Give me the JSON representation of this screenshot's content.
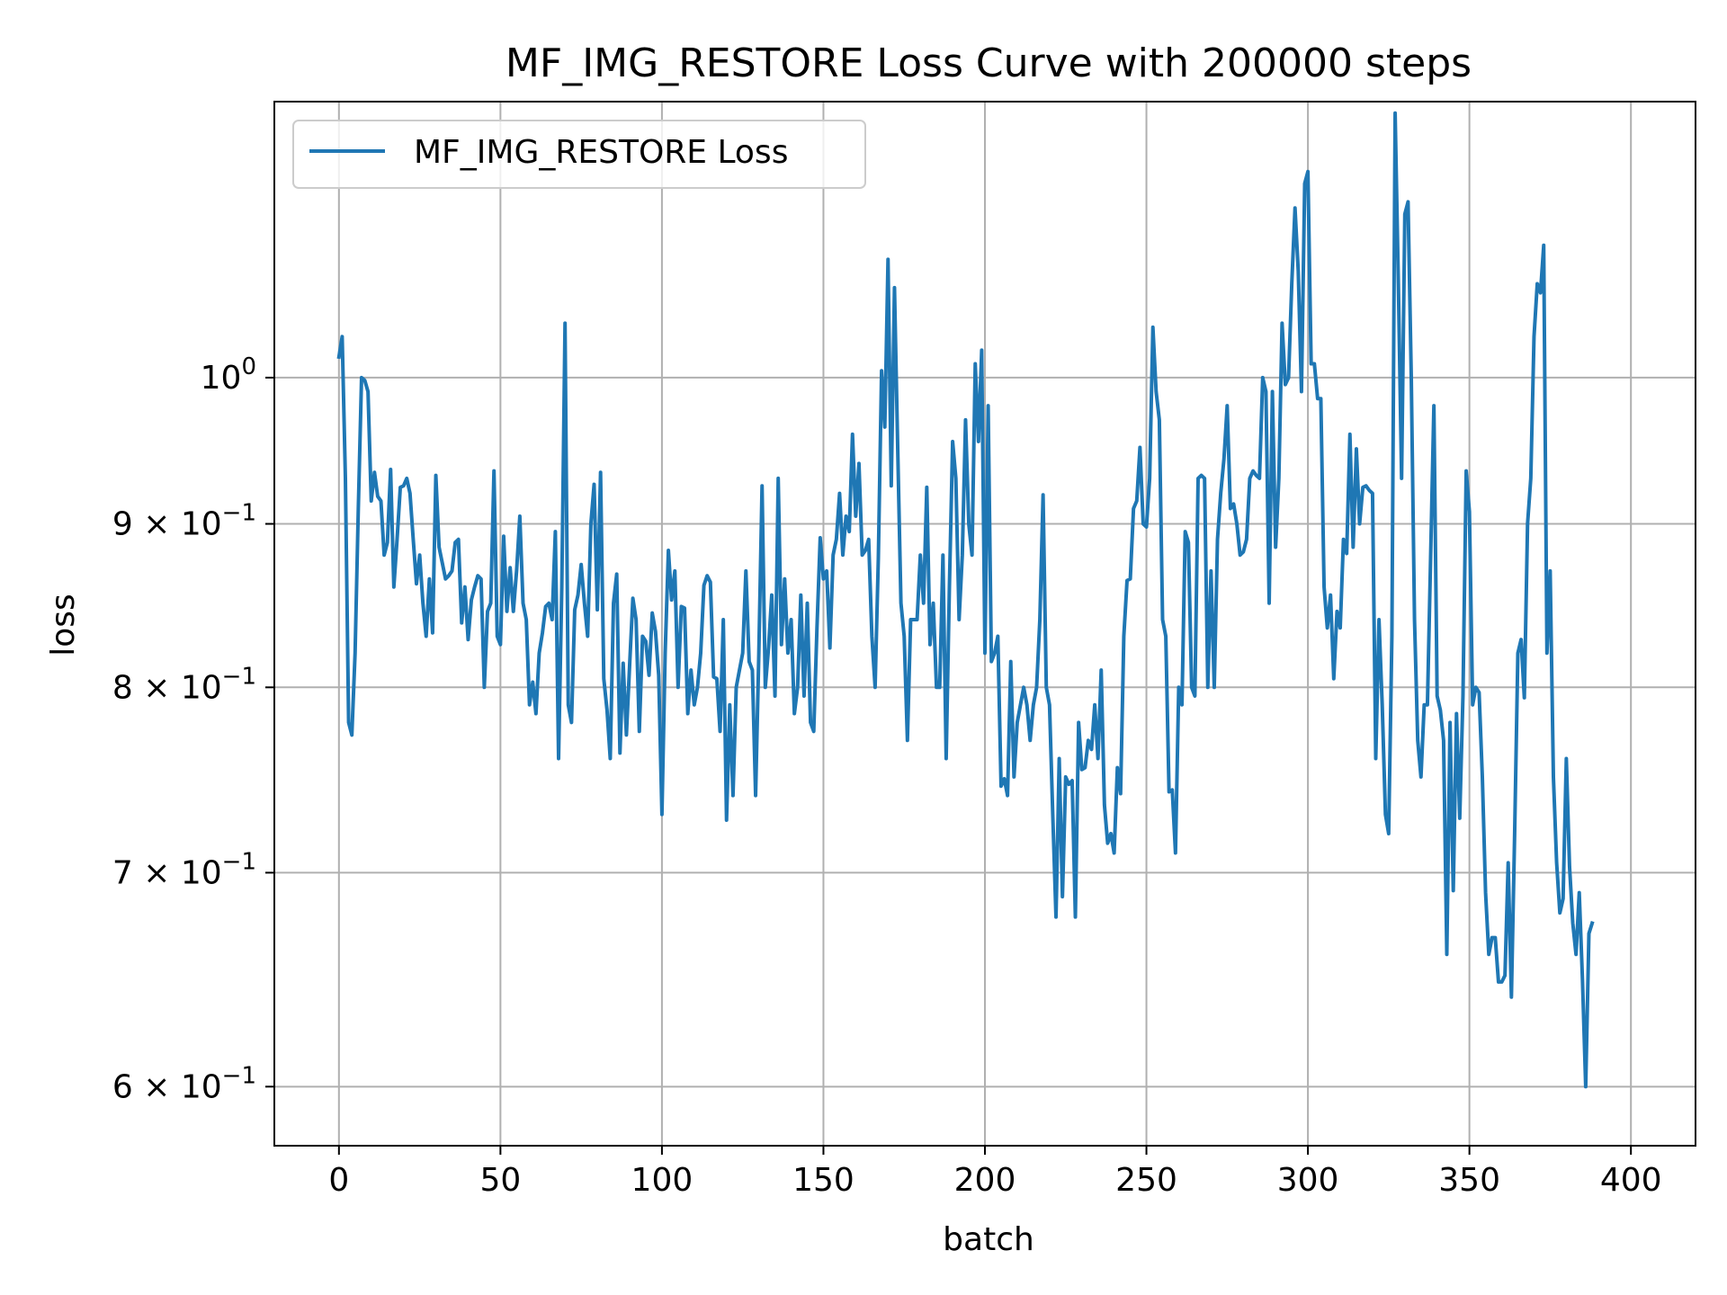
{
  "chart_data": {
    "type": "line",
    "title": "MF_IMG_RESTORE Loss Curve with 200000 steps",
    "xlabel": "batch",
    "ylabel": "loss",
    "yscale": "log",
    "grid": true,
    "legend_position": "top-left",
    "xlim": [
      -20,
      420
    ],
    "ylim": [
      0.575,
      1.22
    ],
    "x_ticks": [
      {
        "value": 0,
        "label": "0"
      },
      {
        "value": 50,
        "label": "50"
      },
      {
        "value": 100,
        "label": "100"
      },
      {
        "value": 150,
        "label": "150"
      },
      {
        "value": 200,
        "label": "200"
      },
      {
        "value": 250,
        "label": "250"
      },
      {
        "value": 300,
        "label": "300"
      },
      {
        "value": 350,
        "label": "350"
      },
      {
        "value": 400,
        "label": "400"
      }
    ],
    "y_ticks": [
      {
        "value": 0.6,
        "mantissa": "6",
        "base": "10",
        "exponent": "−1"
      },
      {
        "value": 0.7,
        "mantissa": "7",
        "base": "10",
        "exponent": "−1"
      },
      {
        "value": 0.8,
        "mantissa": "8",
        "base": "10",
        "exponent": "−1"
      },
      {
        "value": 0.9,
        "mantissa": "9",
        "base": "10",
        "exponent": "−1"
      },
      {
        "value": 1.0,
        "mantissa": "",
        "base": "10",
        "exponent": "0"
      }
    ],
    "colors": {
      "line": "#1f77b4",
      "grid": "#b0b0b0",
      "axes": "#000000"
    },
    "series": [
      {
        "name": "MF_IMG_RESTORE Loss",
        "x_start": 0,
        "x_step": 1,
        "values": [
          1.015,
          1.03,
          0.93,
          0.78,
          0.773,
          0.82,
          0.91,
          1.0,
          0.998,
          0.99,
          0.915,
          0.934,
          0.918,
          0.915,
          0.88,
          0.888,
          0.936,
          0.86,
          0.89,
          0.924,
          0.925,
          0.93,
          0.92,
          0.89,
          0.862,
          0.88,
          0.85,
          0.83,
          0.865,
          0.832,
          0.932,
          0.885,
          0.875,
          0.865,
          0.867,
          0.87,
          0.888,
          0.89,
          0.838,
          0.86,
          0.828,
          0.852,
          0.86,
          0.867,
          0.865,
          0.8,
          0.845,
          0.85,
          0.935,
          0.83,
          0.825,
          0.892,
          0.845,
          0.872,
          0.845,
          0.87,
          0.905,
          0.85,
          0.84,
          0.79,
          0.803,
          0.785,
          0.82,
          0.832,
          0.848,
          0.85,
          0.84,
          0.895,
          0.76,
          0.86,
          1.04,
          0.79,
          0.78,
          0.846,
          0.855,
          0.874,
          0.85,
          0.83,
          0.9,
          0.926,
          0.846,
          0.934,
          0.805,
          0.787,
          0.76,
          0.85,
          0.868,
          0.763,
          0.814,
          0.773,
          0.813,
          0.853,
          0.84,
          0.775,
          0.83,
          0.827,
          0.807,
          0.844,
          0.833,
          0.807,
          0.73,
          0.82,
          0.883,
          0.852,
          0.87,
          0.8,
          0.848,
          0.847,
          0.785,
          0.81,
          0.79,
          0.8,
          0.82,
          0.861,
          0.867,
          0.863,
          0.806,
          0.805,
          0.775,
          0.84,
          0.727,
          0.79,
          0.74,
          0.8,
          0.81,
          0.82,
          0.87,
          0.815,
          0.81,
          0.74,
          0.82,
          0.925,
          0.8,
          0.823,
          0.855,
          0.795,
          0.93,
          0.825,
          0.865,
          0.82,
          0.84,
          0.785,
          0.8,
          0.855,
          0.795,
          0.85,
          0.78,
          0.775,
          0.835,
          0.891,
          0.865,
          0.87,
          0.823,
          0.88,
          0.89,
          0.92,
          0.88,
          0.905,
          0.895,
          0.96,
          0.905,
          0.94,
          0.88,
          0.883,
          0.89,
          0.83,
          0.8,
          0.878,
          1.005,
          0.965,
          1.089,
          0.925,
          1.067,
          0.95,
          0.85,
          0.83,
          0.77,
          0.84,
          0.84,
          0.84,
          0.88,
          0.85,
          0.924,
          0.825,
          0.85,
          0.8,
          0.8,
          0.88,
          0.76,
          0.86,
          0.955,
          0.93,
          0.84,
          0.88,
          0.97,
          0.9,
          0.88,
          1.01,
          0.955,
          1.02,
          0.82,
          0.98,
          0.815,
          0.82,
          0.83,
          0.745,
          0.749,
          0.74,
          0.815,
          0.75,
          0.78,
          0.79,
          0.8,
          0.79,
          0.77,
          0.79,
          0.8,
          0.84,
          0.919,
          0.8,
          0.79,
          0.73,
          0.678,
          0.76,
          0.688,
          0.75,
          0.746,
          0.748,
          0.678,
          0.78,
          0.754,
          0.755,
          0.77,
          0.765,
          0.79,
          0.76,
          0.81,
          0.735,
          0.715,
          0.72,
          0.71,
          0.755,
          0.741,
          0.83,
          0.864,
          0.865,
          0.91,
          0.915,
          0.951,
          0.9,
          0.898,
          0.93,
          1.037,
          0.99,
          0.97,
          0.84,
          0.83,
          0.742,
          0.743,
          0.71,
          0.8,
          0.79,
          0.895,
          0.888,
          0.8,
          0.795,
          0.93,
          0.932,
          0.93,
          0.8,
          0.87,
          0.8,
          0.89,
          0.92,
          0.943,
          0.98,
          0.91,
          0.913,
          0.9,
          0.88,
          0.882,
          0.89,
          0.93,
          0.935,
          0.932,
          0.93,
          1.0,
          0.99,
          0.85,
          0.99,
          0.885,
          0.93,
          1.04,
          0.995,
          1.0,
          1.07,
          1.13,
          1.08,
          0.99,
          1.15,
          1.16,
          1.01,
          1.01,
          0.985,
          0.985,
          0.86,
          0.835,
          0.855,
          0.805,
          0.845,
          0.835,
          0.89,
          0.881,
          0.96,
          0.885,
          0.95,
          0.9,
          0.924,
          0.925,
          0.922,
          0.92,
          0.76,
          0.84,
          0.79,
          0.73,
          0.72,
          0.83,
          1.21,
          1.07,
          0.93,
          1.125,
          1.135,
          1.0,
          0.84,
          0.77,
          0.75,
          0.79,
          0.79,
          0.88,
          0.98,
          0.795,
          0.787,
          0.77,
          0.66,
          0.78,
          0.691,
          0.785,
          0.728,
          0.795,
          0.935,
          0.908,
          0.79,
          0.8,
          0.797,
          0.75,
          0.69,
          0.66,
          0.668,
          0.668,
          0.647,
          0.647,
          0.65,
          0.705,
          0.64,
          0.72,
          0.82,
          0.828,
          0.794,
          0.9,
          0.93,
          1.03,
          1.07,
          1.063,
          1.1,
          0.82,
          0.87,
          0.75,
          0.705,
          0.68,
          0.687,
          0.76,
          0.703,
          0.675,
          0.66,
          0.69,
          0.648,
          0.6,
          0.67,
          0.675
        ]
      }
    ]
  }
}
